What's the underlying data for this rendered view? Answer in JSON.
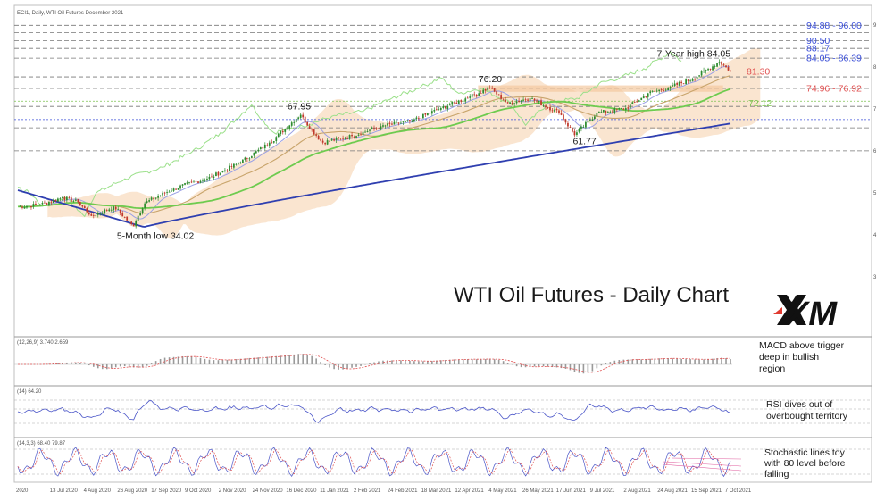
{
  "header": {
    "symbol_line": "ECI1, Daily, WTI Oil Futures December 2021"
  },
  "title": "WTI Oil Futures - Daily Chart",
  "logo_text": "XM",
  "colors": {
    "bull": "#2e8b2e",
    "bear": "#c0392b",
    "sma_fast": "#9aa0e6",
    "sma_mid": "#c8a46b",
    "sma_green": "#6ecb4f",
    "sma_slow": "#2f3fb0",
    "lagging": "#9be08a",
    "cloud": "#f6cfaa",
    "level_blue": "#3b4fd8",
    "level_red": "#e05050",
    "level_green": "#7cc24f",
    "pane_line": "#4a55c8",
    "signal": "#e05050"
  },
  "chart_data": [
    {
      "type": "candlestick",
      "title": "WTI Oil Futures - Daily Chart",
      "x_tick_labels": [
        "2020",
        "13 Jul 2020",
        "4 Aug 2020",
        "26 Aug 2020",
        "17 Sep 2020",
        "9 Oct 2020",
        "2 Nov 2020",
        "24 Nov 2020",
        "16 Dec 2020",
        "11 Jan 2021",
        "2 Feb 2021",
        "24 Feb 2021",
        "18 Mar 2021",
        "12 Apr 2021",
        "4 May 2021",
        "26 May 2021",
        "17 Jun 2021",
        "9 Jul 2021",
        "2 Aug 2021",
        "24 Aug 2021",
        "15 Sep 2021",
        "7 Oct 2021"
      ],
      "ylim": [
        20,
        98
      ],
      "y_tick_labels": [
        3,
        4,
        5,
        6,
        7,
        8,
        9
      ],
      "key_path": [
        {
          "t": 0,
          "v": 40.0
        },
        {
          "t": 3,
          "v": 40.6
        },
        {
          "t": 6,
          "v": 42.8
        },
        {
          "t": 8,
          "v": 41.4
        },
        {
          "t": 10,
          "v": 37.2
        },
        {
          "t": 13,
          "v": 40.0
        },
        {
          "t": 15.5,
          "v": 34.02
        },
        {
          "t": 17,
          "v": 41.0
        },
        {
          "t": 21,
          "v": 45.5
        },
        {
          "t": 26,
          "v": 49.0
        },
        {
          "t": 30,
          "v": 53.5
        },
        {
          "t": 34,
          "v": 59.5
        },
        {
          "t": 38,
          "v": 67.95
        },
        {
          "t": 41,
          "v": 59.5
        },
        {
          "t": 45,
          "v": 61.5
        },
        {
          "t": 49,
          "v": 64.5
        },
        {
          "t": 53,
          "v": 66.0
        },
        {
          "t": 57,
          "v": 70.0
        },
        {
          "t": 61,
          "v": 73.5
        },
        {
          "t": 63.5,
          "v": 76.2
        },
        {
          "t": 66,
          "v": 71.5
        },
        {
          "t": 69,
          "v": 73.0
        },
        {
          "t": 73,
          "v": 68.5
        },
        {
          "t": 75,
          "v": 61.77
        },
        {
          "t": 78,
          "v": 68.5
        },
        {
          "t": 82,
          "v": 70.0
        },
        {
          "t": 85,
          "v": 74.5
        },
        {
          "t": 88,
          "v": 76.5
        },
        {
          "t": 91,
          "v": 79.0
        },
        {
          "t": 94.5,
          "v": 84.05
        },
        {
          "t": 96,
          "v": 81.3
        }
      ],
      "horizontal_levels": [
        {
          "label": "94.88 - 96.00",
          "value": 95.2,
          "color": "#3b4fd8"
        },
        {
          "label": "90.50",
          "value": 90.5,
          "color": "#3b4fd8"
        },
        {
          "label": "88.17",
          "value": 88.17,
          "color": "#3b4fd8"
        },
        {
          "label": "84.05 - 86.39",
          "value": 85.2,
          "color": "#3b4fd8"
        },
        {
          "label": "74.96 - 76.92",
          "value": 76.0,
          "color": "#e05050"
        }
      ],
      "annotations": [
        {
          "text": "7-Year high 84.05",
          "t": 94.5,
          "v": 84.05
        },
        {
          "text": "81.30",
          "t": 96,
          "v": 81.3
        },
        {
          "text": "76.20",
          "t": 63.5,
          "v": 76.2
        },
        {
          "text": "72.12",
          "t": 96,
          "v": 72.12
        },
        {
          "text": "67.95",
          "t": 38,
          "v": 67.95
        },
        {
          "text": "61.77",
          "t": 75,
          "v": 61.77
        },
        {
          "text": "5-Month low 34.02",
          "t": 15.5,
          "v": 34.02
        }
      ]
    },
    {
      "type": "histogram",
      "indicator": "MACD",
      "label": "(12,26,9) 3.740 2.659",
      "annotation": "MACD above trigger deep in bullish region"
    },
    {
      "type": "line",
      "indicator": "RSI",
      "label": "(14) 64.20",
      "annotation": "RSI dives out of overbought territory"
    },
    {
      "type": "line",
      "indicator": "Stochastic",
      "label": "(14,3,3) 68.40 79.87",
      "annotation": "Stochastic lines toy with 80 level before falling"
    }
  ]
}
